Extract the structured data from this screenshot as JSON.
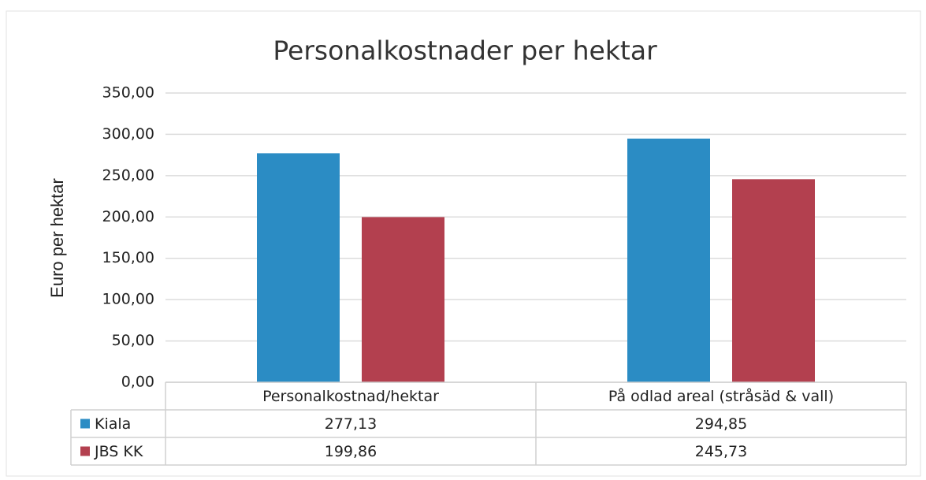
{
  "chart_data": {
    "type": "bar",
    "title": "Personalkostnader per hektar",
    "y_label": "Euro per hektar",
    "categories": [
      "Personalkostnad/hektar",
      "På odlad areal (stråsäd & vall)"
    ],
    "series": [
      {
        "name": "Kiala",
        "color": "#2b8cc4",
        "values": [
          277.13,
          294.85
        ],
        "value_labels": [
          "277,13",
          "294,85"
        ]
      },
      {
        "name": "JBS KK",
        "color": "#b3404f",
        "values": [
          199.86,
          245.73
        ],
        "value_labels": [
          "199,86",
          "245,73"
        ]
      }
    ],
    "ylim": [
      0,
      350
    ],
    "yticks": [
      {
        "value": 0,
        "label": "0,00"
      },
      {
        "value": 50,
        "label": "50,00"
      },
      {
        "value": 100,
        "label": "100,00"
      },
      {
        "value": 150,
        "label": "150,00"
      },
      {
        "value": 200,
        "label": "200,00"
      },
      {
        "value": 250,
        "label": "250,00"
      },
      {
        "value": 300,
        "label": "300,00"
      },
      {
        "value": 350,
        "label": "350,00"
      }
    ],
    "grid": true,
    "data_table": true
  }
}
